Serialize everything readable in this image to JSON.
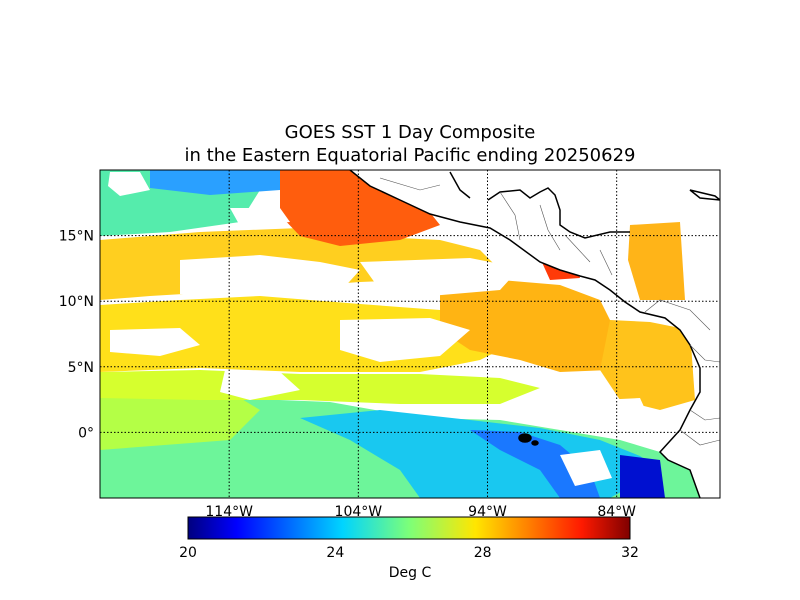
{
  "title_line1": "GOES SST 1 Day Composite",
  "title_line2": "in the Eastern Equatorial Pacific ending 20250629",
  "map": {
    "lat_ticks": [
      {
        "value": 15,
        "label": "15°N"
      },
      {
        "value": 10,
        "label": "10°N"
      },
      {
        "value": 5,
        "label": "5°N"
      },
      {
        "value": 0,
        "label": "0°"
      }
    ],
    "lon_ticks": [
      {
        "value": -114,
        "label": "114°W"
      },
      {
        "value": -104,
        "label": "104°W"
      },
      {
        "value": -94,
        "label": "94°W"
      },
      {
        "value": -84,
        "label": "84°W"
      }
    ],
    "lon_range": [
      -124,
      -76
    ],
    "lat_range": [
      -5,
      20
    ],
    "grid": true
  },
  "colorbar": {
    "min": 20,
    "max": 32,
    "ticks": [
      "20",
      "24",
      "28",
      "32"
    ],
    "label": "Deg C",
    "colormap": "jet"
  }
}
